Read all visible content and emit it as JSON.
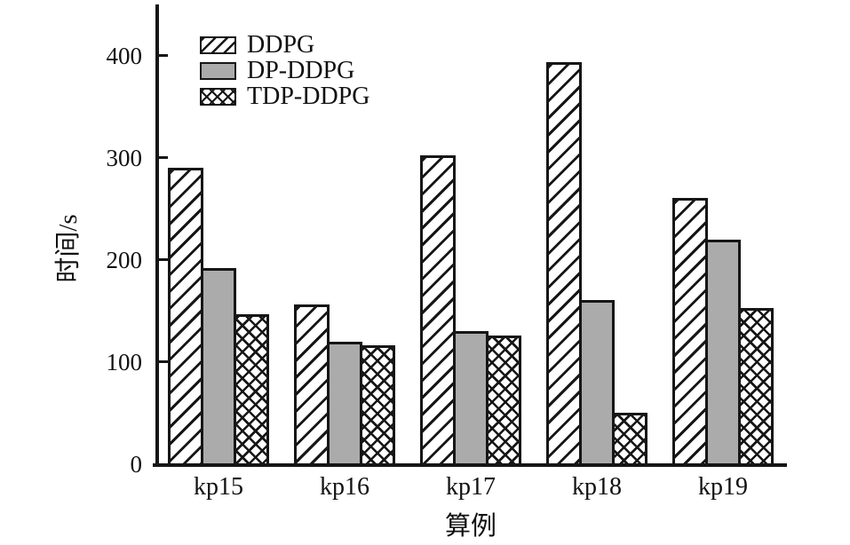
{
  "chart_data": {
    "type": "bar",
    "title": "",
    "xlabel": "算例",
    "ylabel": "时间/s",
    "categories": [
      "kp15",
      "kp16",
      "kp17",
      "kp18",
      "kp19"
    ],
    "series": [
      {
        "name": "DDPG",
        "pattern": "diagonal-hatch",
        "values": [
          290,
          156,
          302,
          394,
          261
        ]
      },
      {
        "name": "DP-DDPG",
        "pattern": "solid",
        "fill": "#ababab",
        "values": [
          192,
          120,
          130,
          161,
          220
        ]
      },
      {
        "name": "TDP-DDPG",
        "pattern": "cross-hatch",
        "values": [
          147,
          116,
          126,
          50,
          153
        ]
      }
    ],
    "yticks": [
      0,
      100,
      200,
      300,
      400
    ],
    "ylim": [
      0,
      450
    ],
    "grid": false,
    "legend_position": "top-left"
  },
  "colors": {
    "axis": "#161616",
    "bar_outline": "#161616",
    "solid_fill": "#ababab",
    "text": "#111111",
    "background": "#ffffff"
  }
}
